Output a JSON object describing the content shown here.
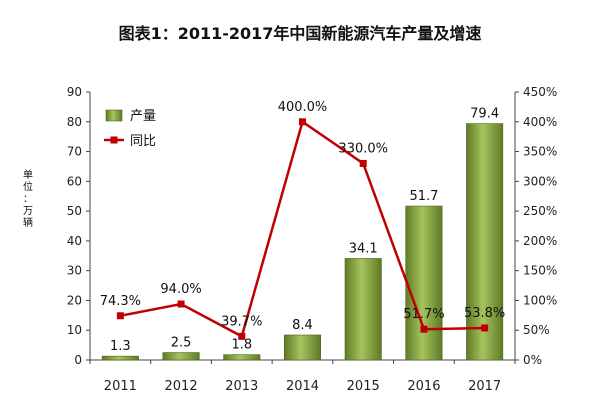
{
  "chart_data": {
    "type": "bar",
    "title": "图表1：2011-2017年中国新能源汽车产量及增速",
    "ylabel": "单位：万辆",
    "categories": [
      "2011",
      "2012",
      "2013",
      "2014",
      "2015",
      "2016",
      "2017"
    ],
    "ylim": [
      0,
      90
    ],
    "y_ticks": [
      "0",
      "10",
      "20",
      "30",
      "40",
      "50",
      "60",
      "70",
      "80",
      "90"
    ],
    "y2lim": [
      0,
      450
    ],
    "y2_ticks": [
      "0%",
      "50%",
      "100%",
      "150%",
      "200%",
      "250%",
      "300%",
      "350%",
      "400%",
      "450%"
    ],
    "series": [
      {
        "name": "产量",
        "type": "bar",
        "axis": "left",
        "values": [
          1.3,
          2.5,
          1.8,
          8.4,
          34.1,
          51.7,
          79.4
        ],
        "labels": [
          "1.3",
          "2.5",
          "1.8",
          "8.4",
          "34.1",
          "51.7",
          "79.4"
        ],
        "color": "#7a9a3a"
      },
      {
        "name": "同比",
        "type": "line",
        "axis": "right",
        "values": [
          74.3,
          94.0,
          39.7,
          400.0,
          330.0,
          51.7,
          53.8
        ],
        "labels": [
          "74.3%",
          "94.0%",
          "39.7%",
          "400.0%",
          "330.0%",
          "51.7%",
          "53.8%"
        ],
        "color": "#c00000"
      }
    ],
    "legend_position": "top-left",
    "grid": false
  }
}
